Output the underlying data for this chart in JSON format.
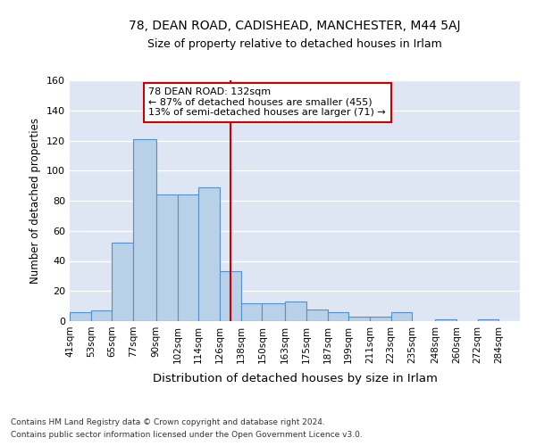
{
  "title1": "78, DEAN ROAD, CADISHEAD, MANCHESTER, M44 5AJ",
  "title2": "Size of property relative to detached houses in Irlam",
  "xlabel": "Distribution of detached houses by size in Irlam",
  "ylabel": "Number of detached properties",
  "footnote1": "Contains HM Land Registry data © Crown copyright and database right 2024.",
  "footnote2": "Contains public sector information licensed under the Open Government Licence v3.0.",
  "annotation_title": "78 DEAN ROAD: 132sqm",
  "annotation_line1": "← 87% of detached houses are smaller (455)",
  "annotation_line2": "13% of semi-detached houses are larger (71) →",
  "subject_value": 132,
  "bar_edges": [
    41,
    53,
    65,
    77,
    90,
    102,
    114,
    126,
    138,
    150,
    163,
    175,
    187,
    199,
    211,
    223,
    235,
    248,
    260,
    272,
    284
  ],
  "bar_heights": [
    6,
    7,
    52,
    121,
    84,
    84,
    89,
    33,
    12,
    12,
    13,
    8,
    6,
    3,
    3,
    6,
    0,
    1,
    0,
    1
  ],
  "bar_color": "#b8d0e8",
  "bar_edge_color": "#5590c8",
  "vline_color": "#cc0000",
  "annotation_box_color": "#cc0000",
  "bg_color": "#dde6f2",
  "grid_color": "#ffffff",
  "ylim": [
    0,
    160
  ],
  "yticks": [
    0,
    20,
    40,
    60,
    80,
    100,
    120,
    140,
    160
  ]
}
